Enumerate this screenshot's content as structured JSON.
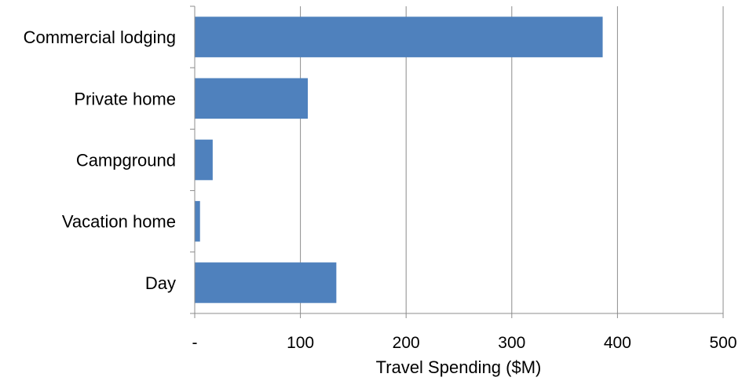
{
  "chart_data": {
    "type": "bar",
    "orientation": "horizontal",
    "categories": [
      "Commercial lodging",
      "Private home",
      "Campground",
      "Vacation home",
      "Day"
    ],
    "values": [
      386,
      107,
      17,
      5,
      134
    ],
    "xlabel": "Travel Spending ($M)",
    "ylabel": "",
    "xlim": [
      0,
      500
    ],
    "xticks": [
      0,
      100,
      200,
      300,
      400,
      500
    ],
    "xtick_labels": [
      "-",
      "100",
      "200",
      "300",
      "400",
      "500"
    ],
    "grid": "vertical",
    "legend": "none",
    "bar_color": "#4f81bd"
  }
}
